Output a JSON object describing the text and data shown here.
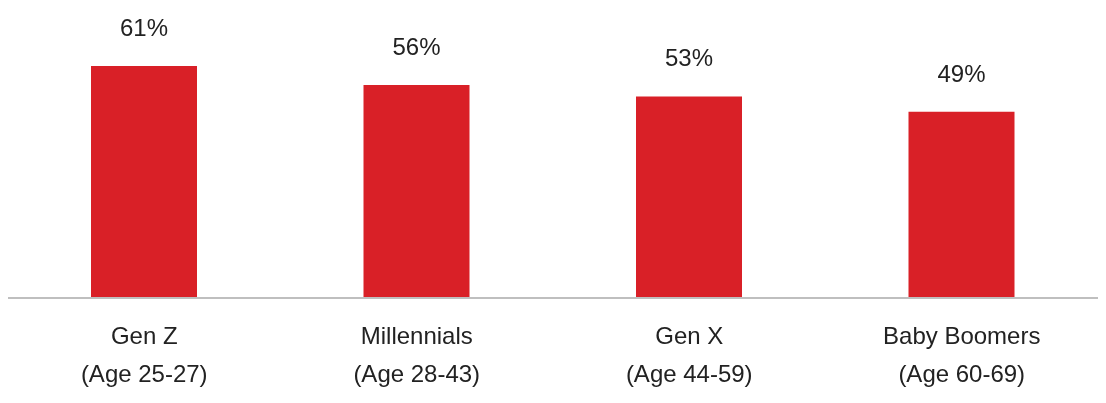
{
  "chart_data": {
    "type": "bar",
    "categories": [
      "Gen Z\n(Age 25-27)",
      "Millennials\n(Age 28-43)",
      "Gen X\n(Age 44-59)",
      "Baby Boomers\n(Age 60-69)"
    ],
    "values": [
      61,
      56,
      53,
      49
    ],
    "value_labels": [
      "61%",
      "56%",
      "53%",
      "49%"
    ],
    "color": "#d92027"
  }
}
